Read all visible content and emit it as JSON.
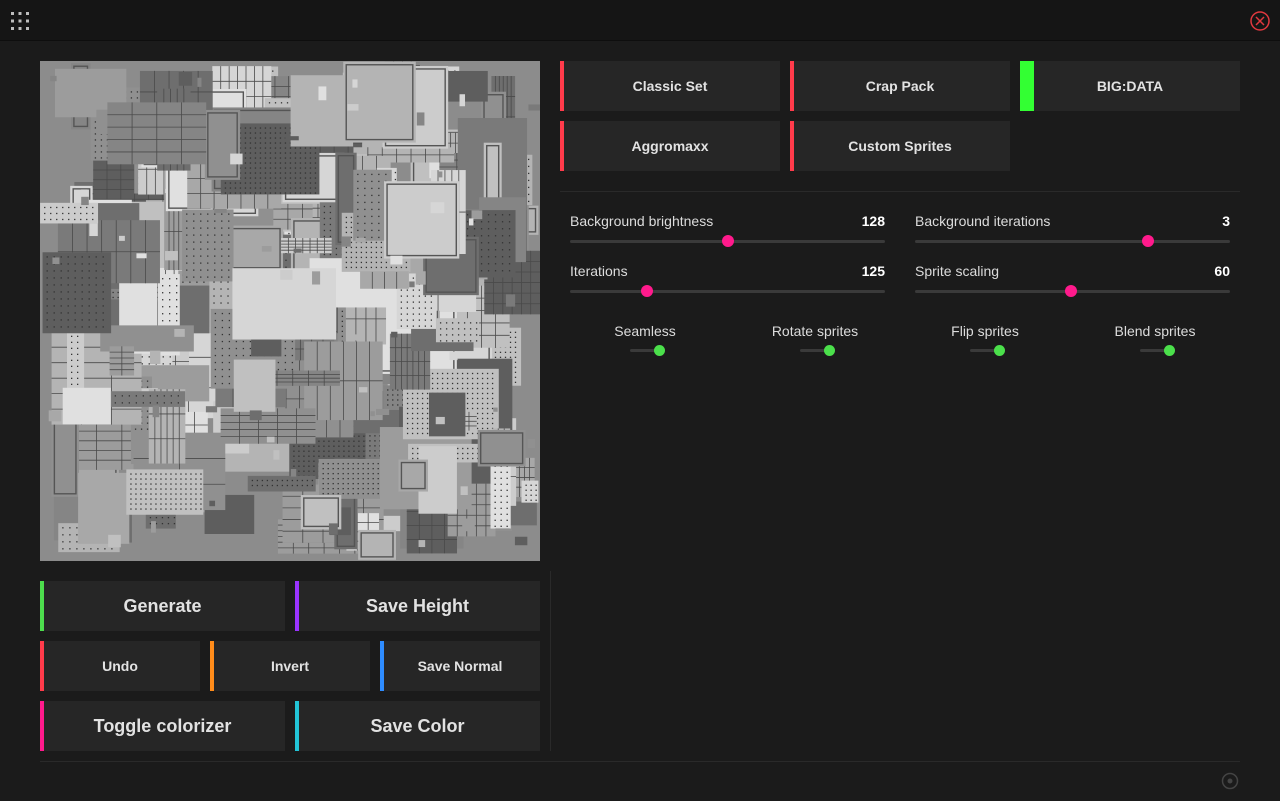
{
  "tabs": [
    {
      "label": "Classic Set",
      "color": "#ff3b4b"
    },
    {
      "label": "Crap Pack",
      "color": "#ff3b4b"
    },
    {
      "label": "BIG:DATA",
      "color": "#33ff33"
    },
    {
      "label": "Aggromaxx",
      "color": "#ff3b4b"
    },
    {
      "label": "Custom Sprites",
      "color": "#ff3b4b"
    }
  ],
  "sliders": [
    {
      "label": "Background brightness",
      "value": "128",
      "fraction": 0.5
    },
    {
      "label": "Background iterations",
      "value": "3",
      "fraction": 0.74
    },
    {
      "label": "Iterations",
      "value": "125",
      "fraction": 0.245
    },
    {
      "label": "Sprite scaling",
      "value": "60",
      "fraction": 0.495
    }
  ],
  "toggles": [
    {
      "label": "Seamless",
      "on": true
    },
    {
      "label": "Rotate sprites",
      "on": true
    },
    {
      "label": "Flip sprites",
      "on": true
    },
    {
      "label": "Blend sprites",
      "on": true
    }
  ],
  "buttons": {
    "generate": {
      "label": "Generate",
      "color": "#4ddd4d"
    },
    "save_height": {
      "label": "Save Height",
      "color": "#9933ff"
    },
    "undo": {
      "label": "Undo",
      "color": "#ff3b4b"
    },
    "invert": {
      "label": "Invert",
      "color": "#ff8c1a"
    },
    "save_normal": {
      "label": "Save Normal",
      "color": "#2e8cff"
    },
    "toggle_colorizer": {
      "label": "Toggle colorizer",
      "color": "#ff1a8c"
    },
    "save_color": {
      "label": "Save Color",
      "color": "#22c4d6"
    }
  },
  "colors": {
    "slider_thumb": "#ff1a8c",
    "toggle_on": "#4be04b",
    "close": "#e0383e"
  }
}
